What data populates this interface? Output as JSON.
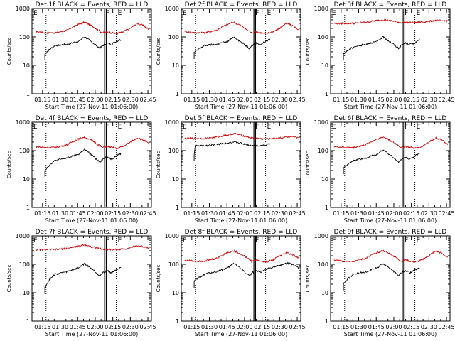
{
  "chart_data": {
    "type": "line",
    "layout": "3x3 grid",
    "x_ticks": [
      "01:15",
      "01:30",
      "01:45",
      "02:00",
      "02:15",
      "02:30",
      "02:45"
    ],
    "x_tick_minutes_from_start": [
      9,
      24,
      39,
      54,
      69,
      84,
      99
    ],
    "xlim_minutes_from_start": [
      0,
      102
    ],
    "start_time": "27-Nov-11 01:06:00",
    "y_scale": "log",
    "ylim": [
      1,
      1000
    ],
    "y_ticks": [
      "1",
      "10",
      "100",
      "1000"
    ],
    "grid": false,
    "series_colors": {
      "events": "#000000",
      "lld": "#cc0000"
    },
    "vertical_markers": {
      "dotted_minutes": [
        12,
        72
      ],
      "solid_minutes": [
        62,
        63.4
      ]
    },
    "panels": [
      {
        "title": "Det 1f BLACK = Events, RED = LLD",
        "xlabel": "Start Time (27-Nov-11 01:06:00)",
        "ylabel": "Counts/sec",
        "flags": [
          "E",
          "F",
          "E"
        ],
        "events": {
          "start": 11,
          "end": 76,
          "minutes": [
            11,
            20,
            30,
            40,
            45,
            50,
            55,
            58,
            62,
            64,
            68,
            72,
            76
          ],
          "values": [
            25,
            50,
            55,
            70,
            100,
            70,
            50,
            40,
            55,
            60,
            55,
            70,
            80
          ]
        },
        "lld": {
          "start": 3,
          "end": 100,
          "minutes": [
            3,
            10,
            20,
            30,
            40,
            45,
            50,
            56,
            60,
            64,
            68,
            72,
            78,
            84,
            90,
            95,
            100
          ],
          "values": [
            160,
            140,
            140,
            170,
            280,
            330,
            260,
            180,
            140,
            150,
            140,
            130,
            150,
            200,
            300,
            250,
            180
          ]
        }
      },
      {
        "title": "Det 2f BLACK = Events, RED = LLD",
        "xlabel": "Start Time (27-Nov-11 01:06:00)",
        "ylabel": "Counts/sec",
        "flags": [
          "E",
          "F",
          "E"
        ],
        "events": {
          "start": 11,
          "end": 76,
          "minutes": [
            11,
            20,
            30,
            40,
            45,
            50,
            55,
            58,
            62,
            64,
            68,
            72,
            76
          ],
          "values": [
            28,
            50,
            55,
            70,
            100,
            70,
            50,
            40,
            55,
            60,
            55,
            70,
            80
          ]
        },
        "lld": {
          "start": 3,
          "end": 100,
          "minutes": [
            3,
            10,
            20,
            30,
            40,
            45,
            50,
            56,
            60,
            64,
            68,
            72,
            78,
            84,
            90,
            95,
            100
          ],
          "values": [
            160,
            140,
            140,
            170,
            280,
            330,
            260,
            180,
            140,
            150,
            140,
            130,
            150,
            200,
            300,
            250,
            180
          ]
        }
      },
      {
        "title": "Det 3f BLACK = Events, RED = LLD",
        "xlabel": "Start Time (27-Nov-11 01:06:00)",
        "ylabel": "Counts/sec",
        "flags": [
          "E",
          "F",
          "E"
        ],
        "events": {
          "start": 11,
          "end": 76,
          "minutes": [
            11,
            20,
            30,
            40,
            45,
            50,
            55,
            58,
            62,
            64,
            68,
            72,
            76
          ],
          "values": [
            25,
            45,
            55,
            70,
            100,
            70,
            50,
            40,
            55,
            60,
            55,
            60,
            80
          ]
        },
        "lld": {
          "start": 3,
          "end": 100,
          "minutes": [
            3,
            20,
            30,
            40,
            45,
            50,
            60,
            70,
            80,
            90,
            100
          ],
          "values": [
            300,
            300,
            330,
            380,
            400,
            380,
            320,
            320,
            340,
            380,
            360
          ]
        }
      },
      {
        "title": "Det 4f BLACK = Events, RED = LLD",
        "xlabel": "Start Time (27-Nov-11 01:06:00)",
        "ylabel": "Counts/sec",
        "flags": [
          "E",
          "F",
          "E"
        ],
        "events": {
          "start": 11,
          "end": 76,
          "minutes": [
            11,
            20,
            30,
            40,
            45,
            50,
            55,
            58,
            62,
            64,
            68,
            72,
            76
          ],
          "values": [
            20,
            45,
            55,
            75,
            110,
            75,
            50,
            40,
            55,
            60,
            50,
            65,
            80
          ]
        },
        "lld": {
          "start": 3,
          "end": 100,
          "minutes": [
            3,
            10,
            20,
            30,
            40,
            45,
            50,
            56,
            60,
            64,
            68,
            72,
            78,
            84,
            90,
            95,
            100
          ],
          "values": [
            140,
            130,
            130,
            160,
            260,
            300,
            240,
            170,
            130,
            140,
            130,
            120,
            140,
            200,
            280,
            240,
            170
          ]
        }
      },
      {
        "title": "Det 5f BLACK = Events, RED = LLD",
        "xlabel": "Start Time (27-Nov-11 01:06:00)",
        "ylabel": "Counts/sec",
        "flags": [
          "E",
          "F",
          "E"
        ],
        "events": {
          "start": 11,
          "end": 76,
          "minutes": [
            11,
            12,
            20,
            30,
            40,
            45,
            50,
            56,
            62,
            70,
            76
          ],
          "values": [
            70,
            150,
            150,
            165,
            190,
            200,
            185,
            160,
            150,
            155,
            170
          ]
        },
        "lld": {
          "start": 3,
          "end": 100,
          "minutes": [
            3,
            20,
            30,
            40,
            45,
            50,
            60,
            70,
            80,
            90,
            100
          ],
          "values": [
            270,
            270,
            300,
            360,
            400,
            360,
            280,
            260,
            270,
            300,
            290
          ]
        }
      },
      {
        "title": "Det 6f BLACK = Events, RED = LLD",
        "xlabel": "Start Time (27-Nov-11 01:06:00)",
        "ylabel": "Counts/sec",
        "flags": [
          "E",
          "F",
          "E"
        ],
        "events": {
          "start": 11,
          "end": 76,
          "minutes": [
            11,
            20,
            30,
            40,
            45,
            50,
            55,
            58,
            62,
            64,
            68,
            72,
            76
          ],
          "values": [
            25,
            45,
            55,
            75,
            105,
            75,
            50,
            40,
            55,
            60,
            50,
            65,
            80
          ]
        },
        "lld": {
          "start": 3,
          "end": 100,
          "minutes": [
            3,
            10,
            20,
            30,
            40,
            45,
            50,
            56,
            60,
            64,
            68,
            72,
            78,
            84,
            90,
            95,
            100
          ],
          "values": [
            140,
            130,
            130,
            160,
            260,
            300,
            240,
            170,
            130,
            140,
            130,
            120,
            140,
            200,
            280,
            240,
            170
          ]
        }
      },
      {
        "title": "Det 7f BLACK = Events, RED = LLD",
        "xlabel": "Start Time (27-Nov-11 01:06:00)",
        "ylabel": "Counts/sec",
        "flags": [
          "E",
          "F",
          "E"
        ],
        "events": {
          "start": 11,
          "end": 76,
          "minutes": [
            11,
            20,
            30,
            40,
            45,
            50,
            55,
            58,
            62,
            64,
            68,
            72,
            76
          ],
          "values": [
            15,
            45,
            55,
            75,
            105,
            75,
            50,
            40,
            55,
            60,
            50,
            65,
            75
          ]
        },
        "lld": {
          "start": 3,
          "end": 100,
          "minutes": [
            3,
            20,
            30,
            40,
            45,
            50,
            60,
            70,
            80,
            90,
            100
          ],
          "values": [
            330,
            330,
            360,
            430,
            500,
            420,
            340,
            330,
            350,
            450,
            380
          ]
        }
      },
      {
        "title": "Det 8f BLACK = Events, RED = LLD",
        "xlabel": "Start Time (27-Nov-11 01:06:00)",
        "ylabel": "Counts/sec",
        "flags": [
          "E",
          "F",
          "E"
        ],
        "events": {
          "start": 11,
          "end": 100,
          "minutes": [
            11,
            20,
            30,
            40,
            45,
            50,
            55,
            58,
            62,
            64,
            68,
            72,
            78,
            84,
            90,
            95,
            100
          ],
          "values": [
            25,
            45,
            55,
            75,
            110,
            75,
            50,
            40,
            55,
            60,
            50,
            65,
            80,
            90,
            110,
            100,
            75
          ]
        },
        "lld": {
          "start": 3,
          "end": 100,
          "minutes": [
            3,
            10,
            20,
            30,
            40,
            45,
            50,
            56,
            60,
            64,
            68,
            72,
            78,
            84,
            90,
            95,
            100
          ],
          "values": [
            140,
            130,
            130,
            160,
            260,
            300,
            240,
            170,
            130,
            140,
            130,
            120,
            140,
            200,
            250,
            220,
            170
          ]
        }
      },
      {
        "title": "Det 9f BLACK = Events, RED = LLD",
        "xlabel": "Start Time (27-Nov-11 01:06:00)",
        "ylabel": "Counts/sec",
        "flags": [
          "E",
          "F",
          "E"
        ],
        "events": {
          "start": 11,
          "end": 76,
          "minutes": [
            11,
            20,
            30,
            40,
            45,
            50,
            55,
            58,
            62,
            64,
            68,
            72,
            76
          ],
          "values": [
            20,
            45,
            55,
            75,
            105,
            75,
            50,
            40,
            55,
            60,
            50,
            65,
            75
          ]
        },
        "lld": {
          "start": 3,
          "end": 100,
          "minutes": [
            3,
            10,
            20,
            30,
            40,
            45,
            50,
            56,
            60,
            64,
            68,
            72,
            78,
            84,
            90,
            95,
            100
          ],
          "values": [
            140,
            130,
            130,
            160,
            260,
            300,
            240,
            170,
            130,
            140,
            130,
            120,
            140,
            200,
            290,
            240,
            170
          ]
        }
      }
    ]
  }
}
